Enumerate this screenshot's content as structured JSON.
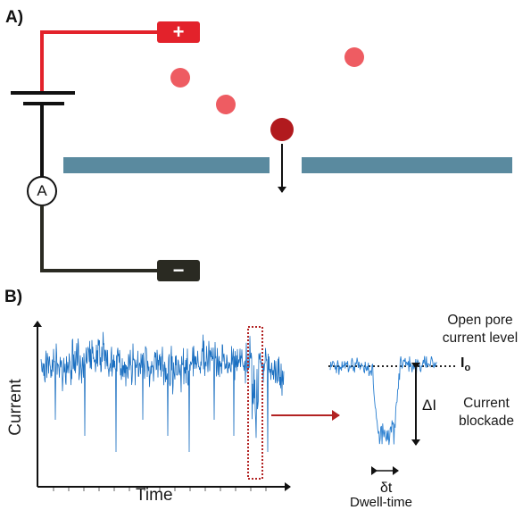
{
  "panel_a": {
    "label": "A)",
    "terminals": {
      "positive": "+",
      "negative": "−"
    },
    "ammeter": "A"
  },
  "panel_b": {
    "label": "B)",
    "x_axis_title": "Time",
    "y_axis_title": "Current",
    "open_pore_text": [
      "Open pore",
      "current level"
    ],
    "open_level_symbol": "I",
    "open_level_subscript": "o",
    "delta_i_symbol": "ΔI",
    "blockade_text": [
      "Current",
      "blockade"
    ],
    "delta_t_symbol": "δt",
    "dwell_time_text": "Dwell-time"
  },
  "colors": {
    "positive_wire": "#e3222b",
    "negative_wire": "#2a2a22",
    "membrane": "#5a8a9f",
    "particle": "#ee5c62",
    "particle_translocating": "#b11a1e",
    "trace": "#1a6fc1",
    "arrow_red": "#b22222"
  }
}
